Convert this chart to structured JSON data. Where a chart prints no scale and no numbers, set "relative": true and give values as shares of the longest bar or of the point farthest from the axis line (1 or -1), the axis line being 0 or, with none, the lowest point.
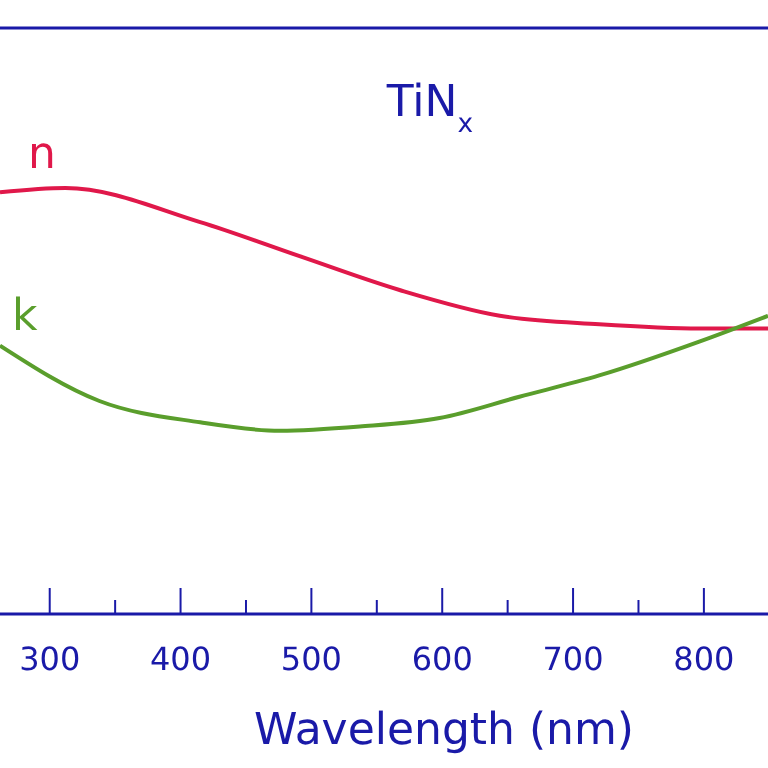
{
  "chart_data": {
    "type": "line",
    "title": "TiN$_{x}$",
    "xlabel": "Wavelength (nm)",
    "relative": true,
    "xlim": [
      262,
      849
    ],
    "xticks": [
      300,
      {
        "value": 350,
        "label": null
      },
      400,
      {
        "value": 450,
        "label": null
      },
      500,
      {
        "value": 550,
        "label": null
      },
      600,
      {
        "value": 650,
        "label": null
      },
      700,
      {
        "value": 750,
        "label": null
      },
      800
    ],
    "tick_labels": "x",
    "grid": false,
    "legend": false,
    "marker": "none",
    "line_style": "solid",
    "series": [
      {
        "name": "n",
        "color": "#e0184a",
        "x": [
          262,
          312,
          415,
          491,
          568,
          644,
          720,
          797,
          849
        ],
        "values": [
          0.99,
          1,
          0.92,
          0.84,
          0.76,
          0.7,
          0.68,
          0.67,
          0.67
        ]
      },
      {
        "name": "k",
        "color": "#5a9e2c",
        "x": [
          262,
          338,
          415,
          476,
          537,
          598,
          659,
          720,
          797,
          849
        ],
        "values": [
          0.63,
          0.5,
          0.45,
          0.43,
          0.44,
          0.46,
          0.51,
          0.56,
          0.64,
          0.7
        ]
      }
    ]
  }
}
